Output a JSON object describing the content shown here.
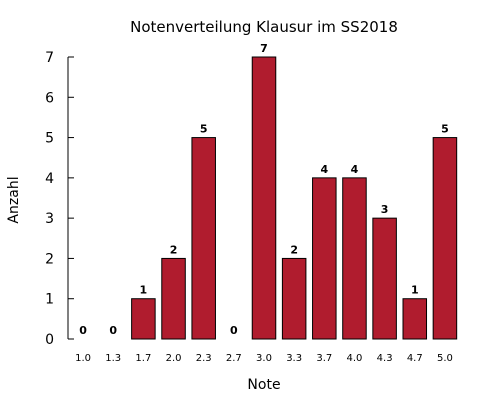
{
  "chart_data": {
    "type": "bar",
    "title": "Notenverteilung Klausur im SS2018",
    "xlabel": "Note",
    "ylabel": "Anzahl",
    "categories": [
      "1.0",
      "1.3",
      "1.7",
      "2.0",
      "2.3",
      "2.7",
      "3.0",
      "3.3",
      "3.7",
      "4.0",
      "4.3",
      "4.7",
      "5.0"
    ],
    "values": [
      0,
      0,
      1,
      2,
      5,
      0,
      7,
      2,
      4,
      4,
      3,
      1,
      5
    ],
    "ylim": [
      0,
      7
    ],
    "yticks": [
      "0",
      "1",
      "2",
      "3",
      "4",
      "5",
      "6",
      "7"
    ],
    "grid": false,
    "bar_color": "#b01c2e"
  }
}
